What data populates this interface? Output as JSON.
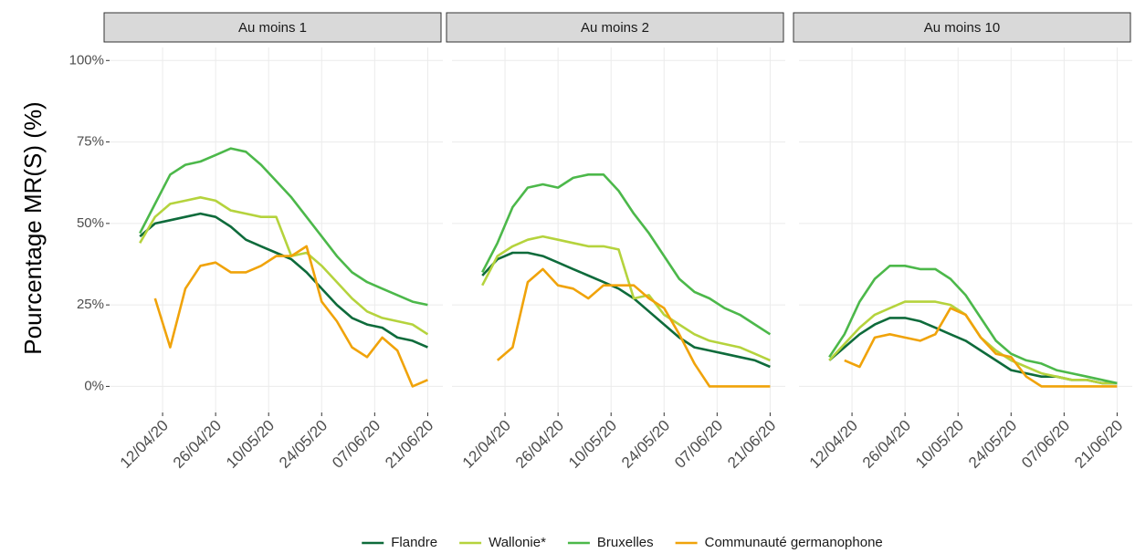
{
  "chart_data": [
    {
      "type": "line",
      "title": "Au moins 1",
      "ylabel": "Pourcentage MR(S) (%)",
      "x": [
        "06/04/20",
        "10/04/20",
        "14/04/20",
        "18/04/20",
        "22/04/20",
        "26/04/20",
        "30/04/20",
        "04/05/20",
        "08/05/20",
        "12/05/20",
        "16/05/20",
        "20/05/20",
        "24/05/20",
        "28/05/20",
        "01/06/20",
        "05/06/20",
        "09/06/20",
        "13/06/20",
        "17/06/20",
        "21/06/20"
      ],
      "xlim": [
        "29/03/20",
        "25/06/20"
      ],
      "xticks": [
        "12/04/20",
        "26/04/20",
        "10/05/20",
        "24/05/20",
        "07/06/20",
        "21/06/20"
      ],
      "ylim": [
        -8,
        104
      ],
      "yticks": [
        {
          "value": 0,
          "label": "0%"
        },
        {
          "value": 25,
          "label": "25%"
        },
        {
          "value": 50,
          "label": "50%"
        },
        {
          "value": 75,
          "label": "75%"
        },
        {
          "value": 100,
          "label": "100%"
        }
      ],
      "grid": true,
      "legend": "bottom",
      "series": [
        {
          "name": "Flandre",
          "color": "#0e6b3b",
          "values": [
            46,
            50,
            51,
            52,
            53,
            52,
            49,
            45,
            43,
            41,
            39,
            35,
            30,
            25,
            21,
            19,
            18,
            15,
            14,
            12
          ]
        },
        {
          "name": "Wallonie*",
          "color": "#b5d33d",
          "values": [
            44,
            52,
            56,
            57,
            58,
            57,
            54,
            53,
            52,
            52,
            40,
            41,
            37,
            32,
            27,
            23,
            21,
            20,
            19,
            16
          ]
        },
        {
          "name": "Bruxelles",
          "color": "#4cb84a",
          "values": [
            47,
            56,
            65,
            68,
            69,
            71,
            73,
            72,
            68,
            63,
            58,
            52,
            46,
            40,
            35,
            32,
            30,
            28,
            26,
            25
          ]
        },
        {
          "name": "Communauté germanophone",
          "color": "#f0a30a",
          "values": [
            null,
            27,
            12,
            30,
            37,
            38,
            35,
            35,
            37,
            40,
            40,
            43,
            26,
            20,
            12,
            9,
            15,
            11,
            0,
            2
          ]
        }
      ]
    },
    {
      "type": "line",
      "title": "Au moins 2",
      "x": [
        "06/04/20",
        "10/04/20",
        "14/04/20",
        "18/04/20",
        "22/04/20",
        "26/04/20",
        "30/04/20",
        "04/05/20",
        "08/05/20",
        "12/05/20",
        "16/05/20",
        "20/05/20",
        "24/05/20",
        "28/05/20",
        "01/06/20",
        "05/06/20",
        "09/06/20",
        "13/06/20",
        "17/06/20",
        "21/06/20"
      ],
      "xlim": [
        "29/03/20",
        "25/06/20"
      ],
      "xticks": [
        "12/04/20",
        "26/04/20",
        "10/05/20",
        "24/05/20",
        "07/06/20",
        "21/06/20"
      ],
      "ylim": [
        -8,
        104
      ],
      "yticks": [
        0,
        25,
        50,
        75,
        100
      ],
      "grid": true,
      "series": [
        {
          "name": "Flandre",
          "color": "#0e6b3b",
          "values": [
            34,
            39,
            41,
            41,
            40,
            38,
            36,
            34,
            32,
            30,
            27,
            23,
            19,
            15,
            12,
            11,
            10,
            9,
            8,
            6
          ]
        },
        {
          "name": "Wallonie*",
          "color": "#b5d33d",
          "values": [
            31,
            40,
            43,
            45,
            46,
            45,
            44,
            43,
            43,
            42,
            27,
            28,
            22,
            19,
            16,
            14,
            13,
            12,
            10,
            8
          ]
        },
        {
          "name": "Bruxelles",
          "color": "#4cb84a",
          "values": [
            35,
            44,
            55,
            61,
            62,
            61,
            64,
            65,
            65,
            60,
            53,
            47,
            40,
            33,
            29,
            27,
            24,
            22,
            19,
            16
          ]
        },
        {
          "name": "Communauté germanophone",
          "color": "#f0a30a",
          "values": [
            null,
            8,
            12,
            32,
            36,
            31,
            30,
            27,
            31,
            31,
            31,
            27,
            24,
            16,
            7,
            0,
            0,
            0,
            0,
            0
          ]
        }
      ]
    },
    {
      "type": "line",
      "title": "Au moins 10",
      "x": [
        "06/04/20",
        "10/04/20",
        "14/04/20",
        "18/04/20",
        "22/04/20",
        "26/04/20",
        "30/04/20",
        "04/05/20",
        "08/05/20",
        "12/05/20",
        "16/05/20",
        "20/05/20",
        "24/05/20",
        "28/05/20",
        "01/06/20",
        "05/06/20",
        "09/06/20",
        "13/06/20",
        "17/06/20",
        "21/06/20"
      ],
      "xlim": [
        "29/03/20",
        "25/06/20"
      ],
      "xticks": [
        "12/04/20",
        "26/04/20",
        "10/05/20",
        "24/05/20",
        "07/06/20",
        "21/06/20"
      ],
      "ylim": [
        -8,
        104
      ],
      "yticks": [
        0,
        25,
        50,
        75,
        100
      ],
      "grid": true,
      "series": [
        {
          "name": "Flandre",
          "color": "#0e6b3b",
          "values": [
            8,
            12,
            16,
            19,
            21,
            21,
            20,
            18,
            16,
            14,
            11,
            8,
            5,
            4,
            3,
            3,
            2,
            2,
            1,
            1
          ]
        },
        {
          "name": "Wallonie*",
          "color": "#b5d33d",
          "values": [
            8,
            13,
            18,
            22,
            24,
            26,
            26,
            26,
            25,
            22,
            15,
            11,
            8,
            6,
            4,
            3,
            2,
            2,
            1,
            1
          ]
        },
        {
          "name": "Bruxelles",
          "color": "#4cb84a",
          "values": [
            9,
            16,
            26,
            33,
            37,
            37,
            36,
            36,
            33,
            28,
            21,
            14,
            10,
            8,
            7,
            5,
            4,
            3,
            2,
            1
          ]
        },
        {
          "name": "Communauté germanophone",
          "color": "#f0a30a",
          "values": [
            null,
            8,
            6,
            15,
            16,
            15,
            14,
            16,
            24,
            22,
            15,
            10,
            9,
            3,
            0,
            0,
            0,
            0,
            0,
            0
          ]
        }
      ]
    }
  ]
}
